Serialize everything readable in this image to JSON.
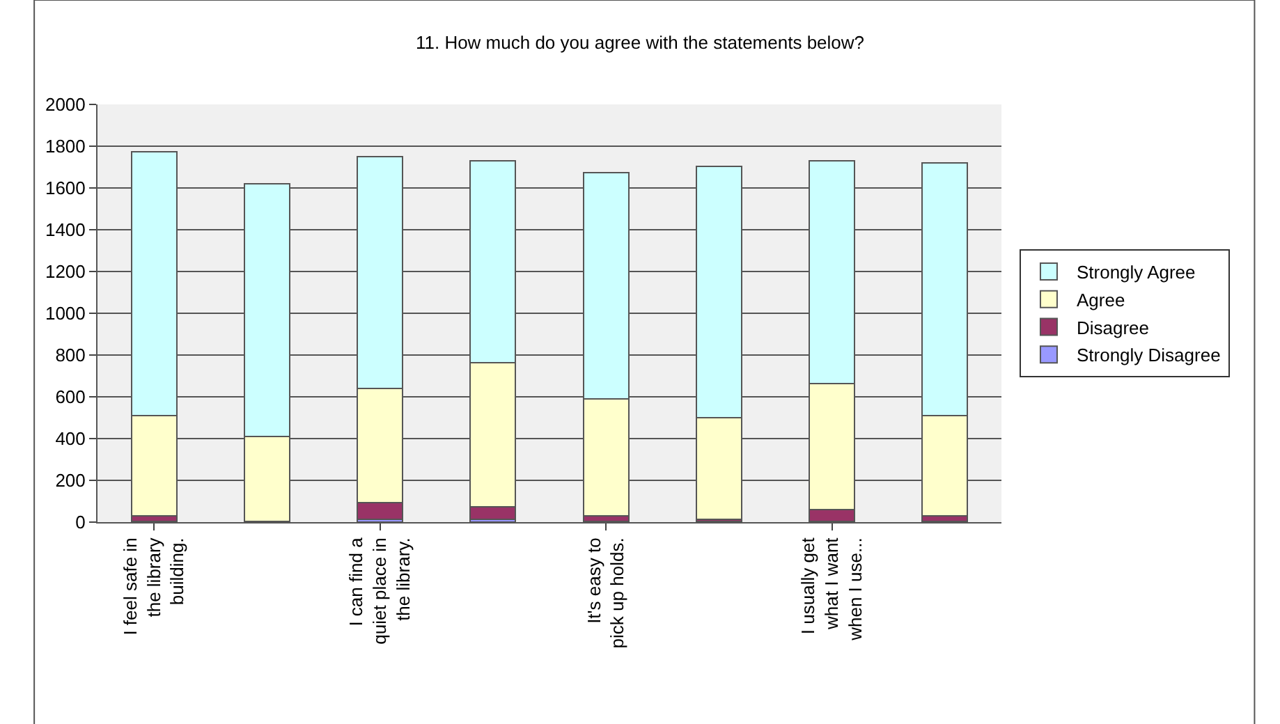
{
  "chart_data": {
    "type": "bar",
    "stacked": true,
    "title": "11. How much do you agree with the statements below?",
    "categories": [
      "I feel safe in the library building.",
      null,
      "I can find a quiet place in the library.",
      null,
      "It's easy to pick up holds.",
      null,
      "I usually get what I want when I use...",
      null
    ],
    "series": [
      {
        "name": "Strongly Disagree",
        "color": "#9999ff",
        "values": [
          5,
          2,
          15,
          15,
          3,
          3,
          5,
          3
        ]
      },
      {
        "name": "Disagree",
        "color": "#993366",
        "values": [
          25,
          3,
          80,
          60,
          27,
          12,
          55,
          27
        ]
      },
      {
        "name": "Agree",
        "color": "#ffffcc",
        "values": [
          480,
          405,
          545,
          690,
          560,
          485,
          605,
          480
        ]
      },
      {
        "name": "Strongly Agree",
        "color": "#ccffff",
        "values": [
          1265,
          1210,
          1110,
          965,
          1085,
          1205,
          1065,
          1210
        ]
      }
    ],
    "ylim": [
      0,
      2000
    ],
    "yticks": [
      0,
      200,
      400,
      600,
      800,
      1000,
      1200,
      1400,
      1600,
      1800,
      2000
    ],
    "grid": "y",
    "legend": "right"
  }
}
